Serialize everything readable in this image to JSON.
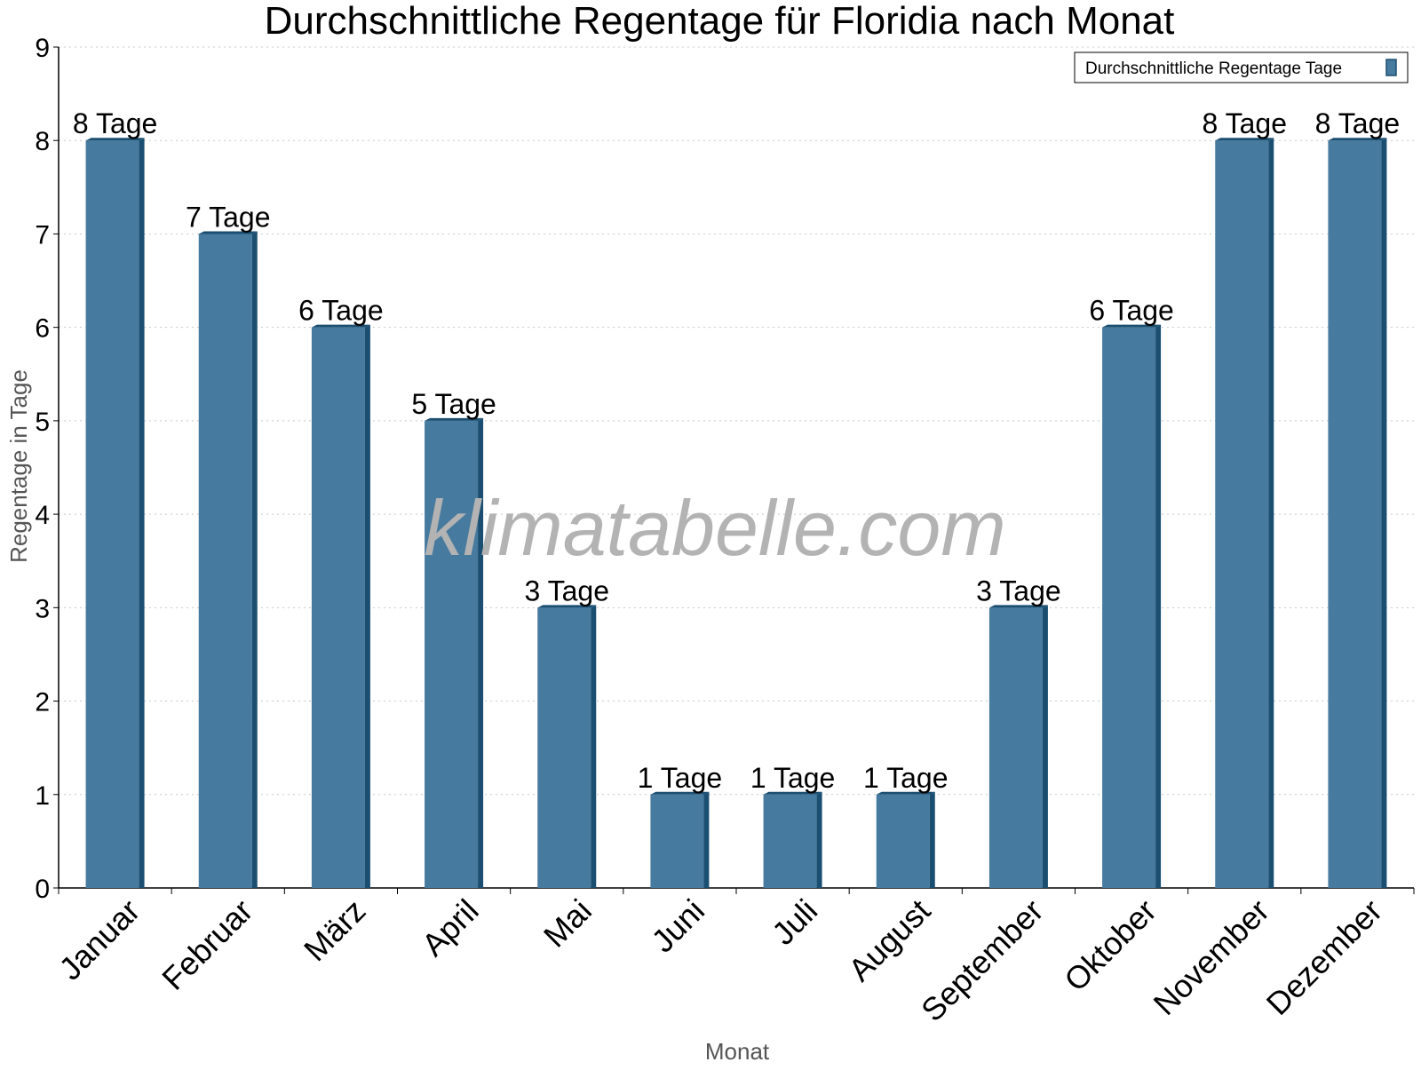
{
  "chart_data": {
    "type": "bar",
    "title": "Durchschnittliche Regentage für Floridia nach Monat",
    "xlabel": "Monat",
    "ylabel": "Regentage in Tage",
    "ylim": [
      0,
      9
    ],
    "yticks": [
      0,
      1,
      2,
      3,
      4,
      5,
      6,
      7,
      8,
      9
    ],
    "grid": true,
    "legend_position": "top-right",
    "categories": [
      "Januar",
      "Februar",
      "März",
      "April",
      "Mai",
      "Juni",
      "Juli",
      "August",
      "September",
      "Oktober",
      "November",
      "Dezember"
    ],
    "series": [
      {
        "name": "Durchschnittliche Regentage Tage",
        "color": "#467a9e",
        "edge_color": "#1b4f72",
        "values": [
          8,
          7,
          6,
          5,
          3,
          1,
          1,
          1,
          3,
          6,
          8,
          8
        ],
        "data_labels": [
          "8 Tage",
          "7 Tage",
          "6 Tage",
          "5 Tage",
          "3 Tage",
          "1 Tage",
          "1 Tage",
          "1 Tage",
          "3 Tage",
          "6 Tage",
          "8 Tage",
          "8 Tage"
        ]
      }
    ],
    "watermark": "klimatabelle.com"
  }
}
